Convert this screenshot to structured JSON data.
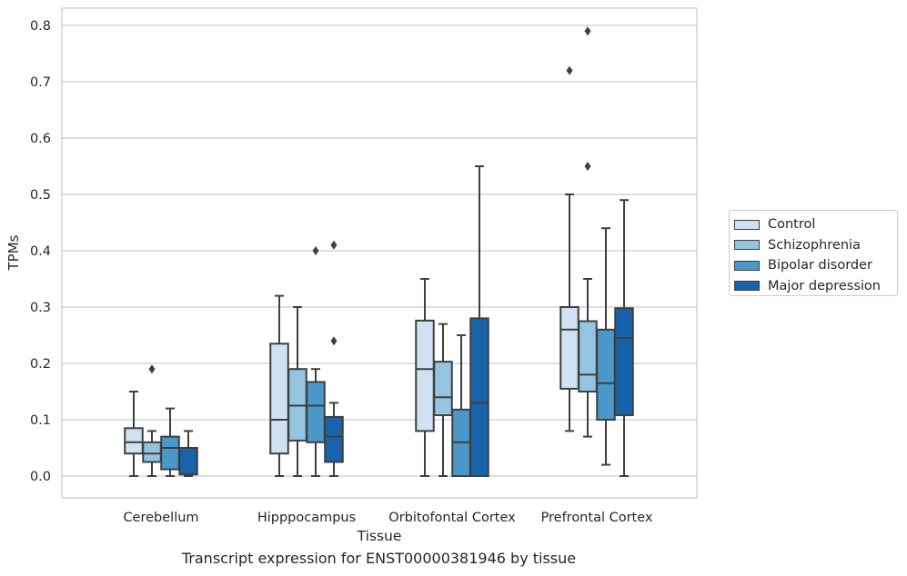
{
  "chart_data": {
    "type": "box",
    "caption": "Transcript expression for ENST00000381946 by tissue",
    "xlabel": "Tissue",
    "ylabel": "TPMs",
    "ylim": [
      -0.04,
      0.83
    ],
    "yticks": [
      0.0,
      0.1,
      0.2,
      0.3,
      0.4,
      0.5,
      0.6,
      0.7,
      0.8
    ],
    "ytick_labels": [
      "0.0",
      "0.1",
      "0.2",
      "0.3",
      "0.4",
      "0.5",
      "0.6",
      "0.7",
      "0.8"
    ],
    "grid": "horizontal",
    "legend_position": "right",
    "categories": [
      "Cerebellum",
      "Hipppocampus",
      "Orbitofontal Cortex",
      "Prefrontal Cortex"
    ],
    "series": [
      {
        "name": "Control",
        "color": "#d0e1f2",
        "boxes": [
          {
            "min": 0.0,
            "q1": 0.04,
            "median": 0.06,
            "q3": 0.085,
            "max": 0.15,
            "outliers": []
          },
          {
            "min": 0.0,
            "q1": 0.04,
            "median": 0.1,
            "q3": 0.235,
            "max": 0.32,
            "outliers": []
          },
          {
            "min": 0.0,
            "q1": 0.08,
            "median": 0.19,
            "q3": 0.276,
            "max": 0.35,
            "outliers": []
          },
          {
            "min": 0.08,
            "q1": 0.155,
            "median": 0.26,
            "q3": 0.3,
            "max": 0.5,
            "outliers": [
              0.72
            ]
          }
        ]
      },
      {
        "name": "Schizophrenia",
        "color": "#94c4df",
        "boxes": [
          {
            "min": 0.0,
            "q1": 0.025,
            "median": 0.04,
            "q3": 0.06,
            "max": 0.08,
            "outliers": [
              0.19
            ]
          },
          {
            "min": 0.0,
            "q1": 0.063,
            "median": 0.125,
            "q3": 0.19,
            "max": 0.3,
            "outliers": []
          },
          {
            "min": 0.0,
            "q1": 0.108,
            "median": 0.14,
            "q3": 0.203,
            "max": 0.27,
            "outliers": []
          },
          {
            "min": 0.07,
            "q1": 0.15,
            "median": 0.18,
            "q3": 0.275,
            "max": 0.35,
            "outliers": [
              0.55,
              0.79
            ]
          }
        ]
      },
      {
        "name": "Bipolar disorder",
        "color": "#4a98c9",
        "boxes": [
          {
            "min": 0.0,
            "q1": 0.012,
            "median": 0.05,
            "q3": 0.07,
            "max": 0.12,
            "outliers": []
          },
          {
            "min": 0.0,
            "q1": 0.06,
            "median": 0.125,
            "q3": 0.167,
            "max": 0.19,
            "outliers": [
              0.4
            ]
          },
          {
            "min": 0.0,
            "q1": 0.0,
            "median": 0.06,
            "q3": 0.118,
            "max": 0.25,
            "outliers": []
          },
          {
            "min": 0.02,
            "q1": 0.1,
            "median": 0.165,
            "q3": 0.26,
            "max": 0.44,
            "outliers": []
          }
        ]
      },
      {
        "name": "Major depression",
        "color": "#1764ab",
        "boxes": [
          {
            "min": 0.0,
            "q1": 0.003,
            "median": 0.003,
            "q3": 0.05,
            "max": 0.08,
            "outliers": []
          },
          {
            "min": 0.0,
            "q1": 0.025,
            "median": 0.07,
            "q3": 0.105,
            "max": 0.13,
            "outliers": [
              0.24,
              0.41
            ]
          },
          {
            "min": 0.0,
            "q1": 0.0,
            "median": 0.13,
            "q3": 0.28,
            "max": 0.55,
            "outliers": []
          },
          {
            "min": 0.0,
            "q1": 0.108,
            "median": 0.245,
            "q3": 0.298,
            "max": 0.49,
            "outliers": []
          }
        ]
      }
    ]
  }
}
